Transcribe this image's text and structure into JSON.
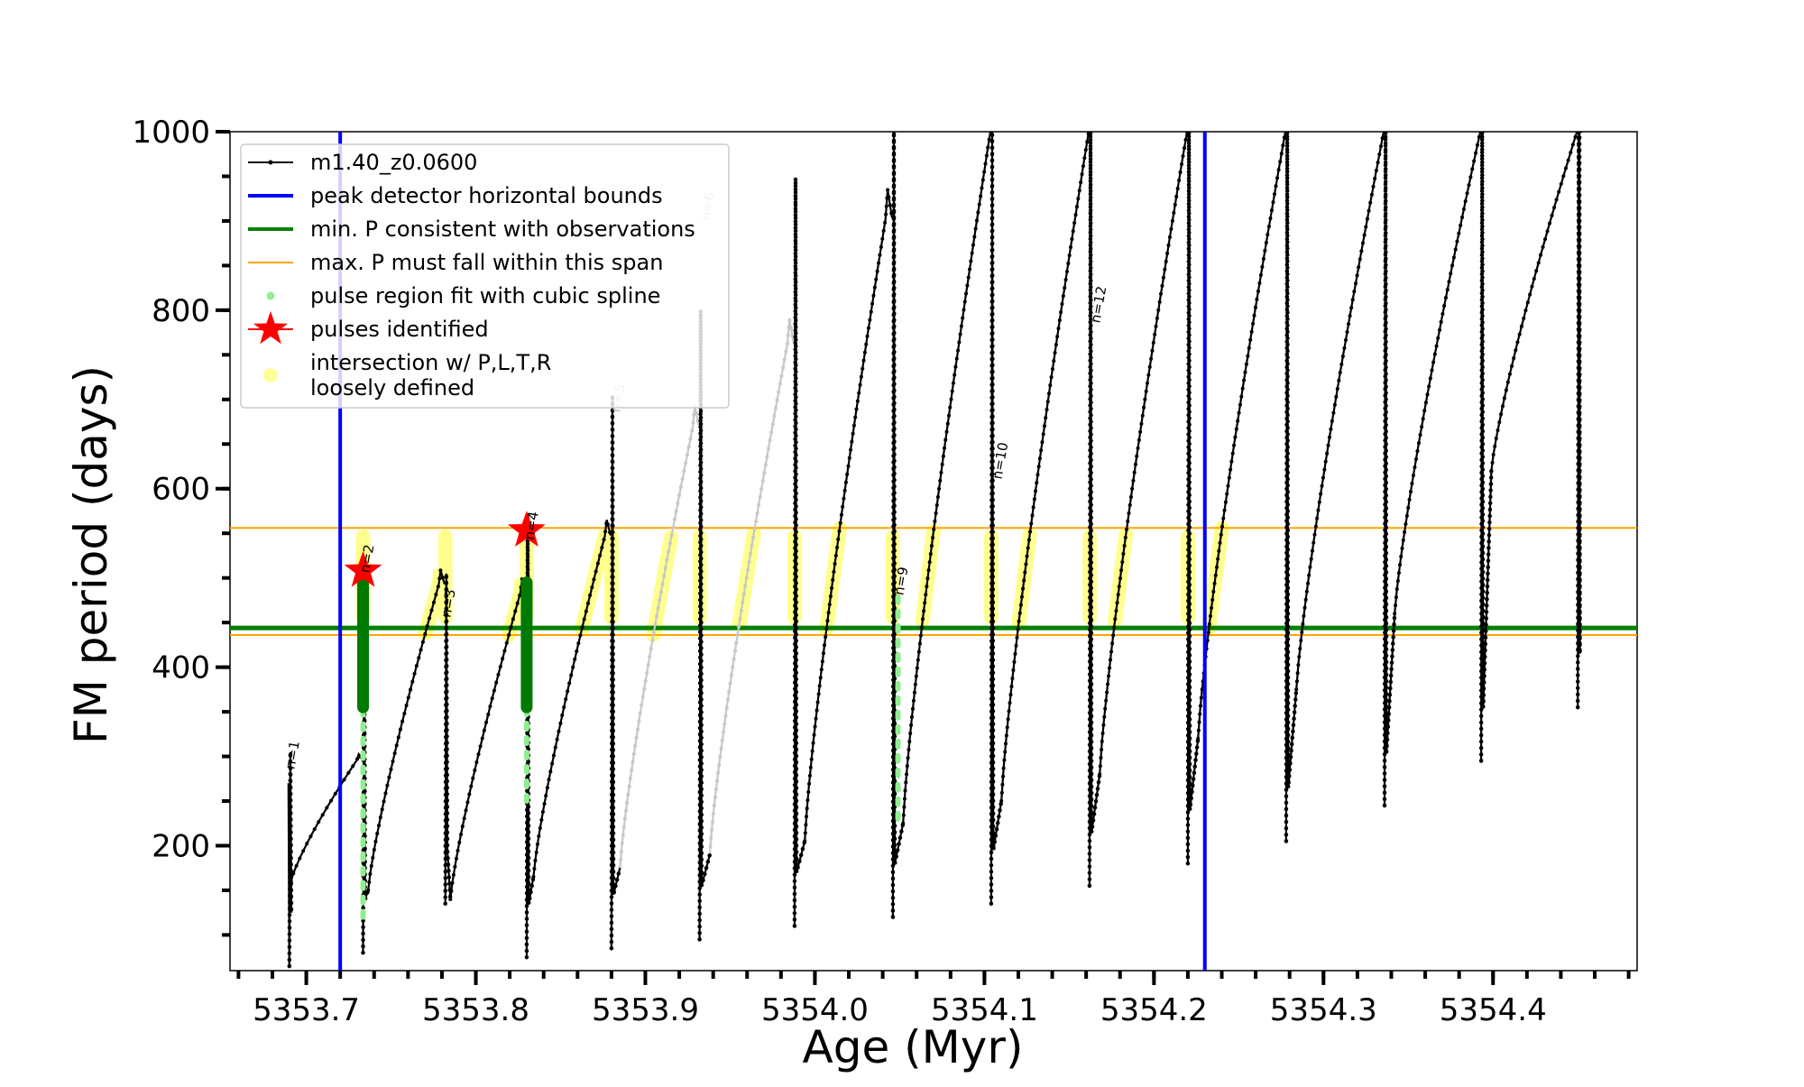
{
  "chart_data": {
    "type": "line",
    "xlabel": "Age (Myr)",
    "ylabel": "FM period (days)",
    "xlim": [
      5353.655,
      5354.485
    ],
    "ylim": [
      60,
      1000
    ],
    "x_ticks": [
      5353.7,
      5353.8,
      5353.9,
      5354.0,
      5354.1,
      5354.2,
      5354.3,
      5354.4
    ],
    "x_tick_labels": [
      "5353.7",
      "5353.8",
      "5353.9",
      "5354.0",
      "5354.1",
      "5354.2",
      "5354.3",
      "5354.4"
    ],
    "y_ticks": [
      200,
      400,
      600,
      800,
      1000
    ],
    "y_tick_labels": [
      "200",
      "400",
      "600",
      "800",
      "1000"
    ],
    "grid": false,
    "legend_position": "top-left",
    "legend": [
      {
        "label": "m1.40_z0.0600",
        "kind": "line-marker",
        "color": "#000000"
      },
      {
        "label": "peak detector horizontal bounds",
        "kind": "line",
        "color": "#0000ff"
      },
      {
        "label": "min. P consistent with observations",
        "kind": "line",
        "color": "#008000"
      },
      {
        "label": "max. P must fall within this span",
        "kind": "thin-line",
        "color": "#ffa500"
      },
      {
        "label": "pulse region fit with cubic spline",
        "kind": "dot",
        "color": "#90ee90"
      },
      {
        "label": "pulses identified",
        "kind": "star",
        "color": "#ff0000"
      },
      {
        "label": "intersection w/ P,L,T,R",
        "label_line2": "loosely defined",
        "kind": "blob",
        "color": "#ffff99"
      }
    ],
    "reference_lines": {
      "peak_detector_bounds_x": [
        5353.72,
        5354.23
      ],
      "min_period_y": 444,
      "max_period_span_y": [
        436,
        556
      ]
    },
    "colors": {
      "track": "#000000",
      "track_faded": "#c8c8c8",
      "bounds": "#0000ff",
      "min_p": "#008000",
      "max_p_span": "#ffa500",
      "spline": "#90ee90",
      "pulse_dark": "#007a00",
      "stars": "#ff0000",
      "intersection": "#ffff33"
    },
    "series": [
      {
        "name": "m1.40_z0.0600",
        "pulses": [
          {
            "x0": 5353.69,
            "y0": 65,
            "peak": 305,
            "low_x": 5353.691,
            "low": 160
          },
          {
            "x0": 5353.7335,
            "y0": 80,
            "peak": 515,
            "low_x": 5353.7365,
            "low": 150
          },
          {
            "x0": 5353.782,
            "y0": 135,
            "peak": 505,
            "low_x": 5353.785,
            "low": 140
          },
          {
            "x0": 5353.83,
            "y0": 75,
            "peak": 572,
            "low_x": 5353.834,
            "low": 165
          },
          {
            "x0": 5353.88,
            "y0": 85,
            "peak": 702,
            "low_x": 5353.885,
            "low": 175
          },
          {
            "x0": 5353.932,
            "y0": 95,
            "peak": 800,
            "low_x": 5353.938,
            "low": 190
          },
          {
            "x0": 5353.988,
            "y0": 110,
            "peak": 948,
            "low_x": 5353.994,
            "low": 205
          },
          {
            "x0": 5354.046,
            "y0": 120,
            "peak": 1000,
            "low_x": 5354.052,
            "low": 225
          },
          {
            "x0": 5354.104,
            "y0": 135,
            "peak": 1000,
            "low_x": 5354.11,
            "low": 250
          },
          {
            "x0": 5354.162,
            "y0": 155,
            "peak": 1000,
            "low_x": 5354.168,
            "low": 280
          },
          {
            "x0": 5354.22,
            "y0": 180,
            "peak": 1000,
            "low_x": 5354.226,
            "low": 320
          },
          {
            "x0": 5354.278,
            "y0": 205,
            "peak": 1000,
            "low_x": 5354.284,
            "low": 375
          },
          {
            "x0": 5354.336,
            "y0": 245,
            "peak": 1000,
            "low_x": 5354.342,
            "low": 460
          },
          {
            "x0": 5354.393,
            "y0": 295,
            "peak": 1000,
            "low_x": 5354.399,
            "low": 620
          },
          {
            "x0": 5354.45,
            "y0": 355,
            "peak": 1000,
            "low_x": 5354.451,
            "low": 1000
          }
        ]
      }
    ],
    "stars": [
      {
        "x": 5353.7335,
        "y": 508
      },
      {
        "x": 5353.83,
        "y": 553
      }
    ],
    "annotations": [
      {
        "text": "n=1",
        "x": 5353.693,
        "y": 285,
        "faded": false
      },
      {
        "text": "n=2",
        "x": 5353.737,
        "y": 505,
        "faded": false
      },
      {
        "text": "n=3",
        "x": 5353.785,
        "y": 455,
        "faded": false
      },
      {
        "text": "n=4",
        "x": 5353.834,
        "y": 542,
        "faded": false
      },
      {
        "text": "n=5",
        "x": 5353.885,
        "y": 685,
        "faded": true
      },
      {
        "text": "n=6",
        "x": 5353.938,
        "y": 900,
        "faded": true
      },
      {
        "text": "n=9",
        "x": 5354.052,
        "y": 480,
        "faded": false
      },
      {
        "text": "n=10",
        "x": 5354.11,
        "y": 610,
        "faded": false
      },
      {
        "text": "n=12",
        "x": 5354.168,
        "y": 785,
        "faded": false
      }
    ],
    "intersection_ys": [
      446,
      556
    ]
  }
}
